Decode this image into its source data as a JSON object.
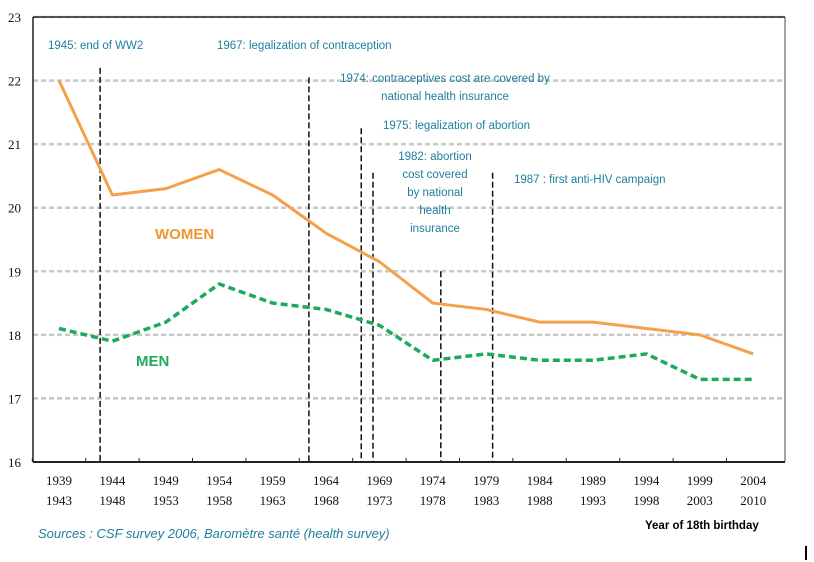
{
  "chart_data": {
    "type": "line",
    "title": "",
    "xlabel": "Year of 18th birthday",
    "ylabel": "",
    "ylim": [
      16,
      23
    ],
    "yticks": [
      "16",
      "17",
      "18",
      "19",
      "20",
      "21",
      "22",
      "23"
    ],
    "categories": [
      [
        "1939",
        "1943"
      ],
      [
        "1944",
        "1948"
      ],
      [
        "1949",
        "1953"
      ],
      [
        "1954",
        "1958"
      ],
      [
        "1959",
        "1963"
      ],
      [
        "1964",
        "1968"
      ],
      [
        "1969",
        "1973"
      ],
      [
        "1974",
        "1978"
      ],
      [
        "1979",
        "1983"
      ],
      [
        "1984",
        "1988"
      ],
      [
        "1989",
        "1993"
      ],
      [
        "1994",
        "1998"
      ],
      [
        "1999",
        "2003"
      ],
      [
        "2004",
        "2010"
      ]
    ],
    "grid": "horizontal dashed",
    "series": [
      {
        "name": "WOMEN",
        "color": "#f5a04a",
        "style": "solid",
        "values": [
          22.0,
          20.2,
          20.3,
          20.6,
          20.2,
          19.6,
          19.15,
          18.5,
          18.4,
          18.2,
          18.2,
          18.1,
          18.0,
          17.7
        ]
      },
      {
        "name": "MEN",
        "color": "#1daa5c",
        "style": "dashed",
        "values": [
          18.1,
          17.9,
          18.2,
          18.8,
          18.5,
          18.4,
          18.15,
          17.6,
          17.7,
          17.6,
          17.6,
          17.7,
          17.3,
          17.3
        ]
      }
    ],
    "events": [
      {
        "label": "1945: end of WW2",
        "x_index": 0.77,
        "top_value": 22.2
      },
      {
        "label": "1967: legalization  of contraception",
        "x_index": 4.68,
        "top_value": 22.05
      },
      {
        "label": "1974: contraceptives cost are covered by national  health insurance",
        "x_index": 5.66,
        "top_value": 21.25
      },
      {
        "label": "1975: legalization of abortion",
        "x_index": 5.88,
        "top_value": 20.55
      },
      {
        "label": "1982: abortion cost covered by national health insurance",
        "x_index": 7.15,
        "top_value": 19.0
      },
      {
        "label": "1987 : first anti-HIV campaign",
        "x_index": 8.12,
        "top_value": 20.55
      }
    ],
    "source": "Sources : CSF survey 2006,  Baromètre santé (health survey)"
  }
}
